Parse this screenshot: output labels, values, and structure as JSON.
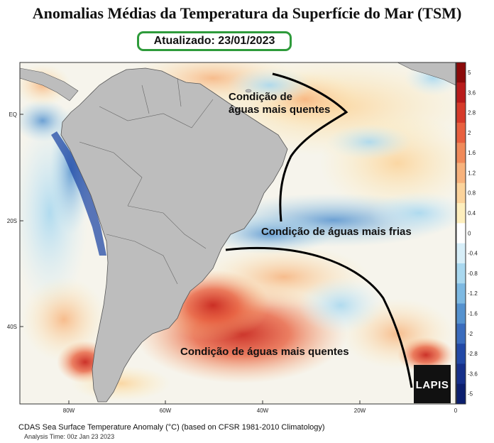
{
  "title": "Anomalias Médias da Temperatura da Superfície do Mar (TSM)",
  "updated_label": "Atualizado: 23/01/2023",
  "annotations": {
    "warm_north_line1": "Condição de",
    "warm_north_line2": "águas mais quentes",
    "cold": "Condição de águas mais frias",
    "warm_south": "Condição de águas mais quentes"
  },
  "lat_labels": [
    "EQ",
    "20S",
    "40S"
  ],
  "lon_labels": [
    "80W",
    "60W",
    "40W",
    "20W",
    "0"
  ],
  "colorbar": {
    "labels": [
      "5",
      "3.6",
      "2.8",
      "2",
      "1.6",
      "1.2",
      "0.8",
      "0.4",
      "0",
      "-0.4",
      "-0.8",
      "-1.2",
      "-1.6",
      "-2",
      "-2.8",
      "-3.6",
      "-5"
    ],
    "colors": [
      "#8b0a0a",
      "#b81b1b",
      "#d63a2a",
      "#e8603f",
      "#f08a5a",
      "#f7b27c",
      "#fbd39b",
      "#fdeebd",
      "#ffffff",
      "#d7eef8",
      "#a9d8ef",
      "#7db9e2",
      "#5592cf",
      "#3a6cbd",
      "#2249a6",
      "#16308a",
      "#0c1f6e"
    ]
  },
  "footer": {
    "line1": "CDAS Sea Surface Temperature Anomaly (°C) (based on CFSR 1981-2010 Climatology)",
    "line2": "Analysis Time: 00z Jan 23 2023"
  },
  "logo_text": "LAPIS",
  "colors": {
    "land": "#bdbdbd",
    "ocean_neutral": "#f7f7f2",
    "frame_green": "#2e9b3b"
  }
}
